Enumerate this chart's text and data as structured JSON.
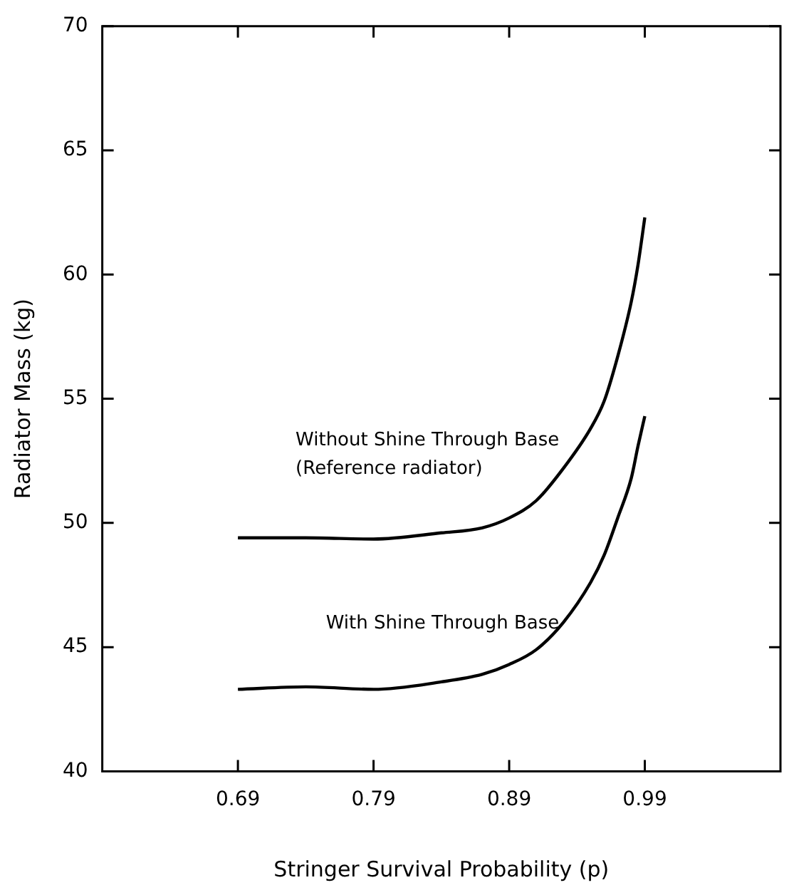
{
  "chart_data": {
    "type": "line",
    "xlabel": "Stringer Survival Probability (p)",
    "ylabel": "Radiator Mass (kg)",
    "xlim": [
      0.59,
      1.09
    ],
    "xticks": [
      0.69,
      0.79,
      0.89,
      0.99
    ],
    "ylim": [
      40,
      70
    ],
    "yticks": [
      40,
      45,
      50,
      55,
      60,
      65,
      70
    ],
    "grid": false,
    "legend": false,
    "marker": "none",
    "line_style": "solid",
    "series": [
      {
        "name": "Without Shine Through Base\n(Reference radiator)",
        "color": "#000000",
        "x": [
          0.69,
          0.74,
          0.79,
          0.84,
          0.87,
          0.89,
          0.91,
          0.93,
          0.95,
          0.96,
          0.97,
          0.98,
          0.985,
          0.99
        ],
        "values": [
          49.4,
          49.4,
          49.35,
          49.6,
          49.8,
          50.2,
          50.9,
          52.2,
          53.8,
          54.9,
          56.7,
          58.9,
          60.4,
          62.3
        ]
      },
      {
        "name": "With Shine Through Base",
        "color": "#000000",
        "x": [
          0.69,
          0.74,
          0.79,
          0.84,
          0.87,
          0.89,
          0.91,
          0.93,
          0.95,
          0.96,
          0.97,
          0.98,
          0.985,
          0.99
        ],
        "values": [
          43.3,
          43.4,
          43.3,
          43.6,
          43.9,
          44.3,
          44.9,
          46.0,
          47.6,
          48.7,
          50.2,
          51.8,
          53.1,
          54.3
        ]
      }
    ]
  }
}
